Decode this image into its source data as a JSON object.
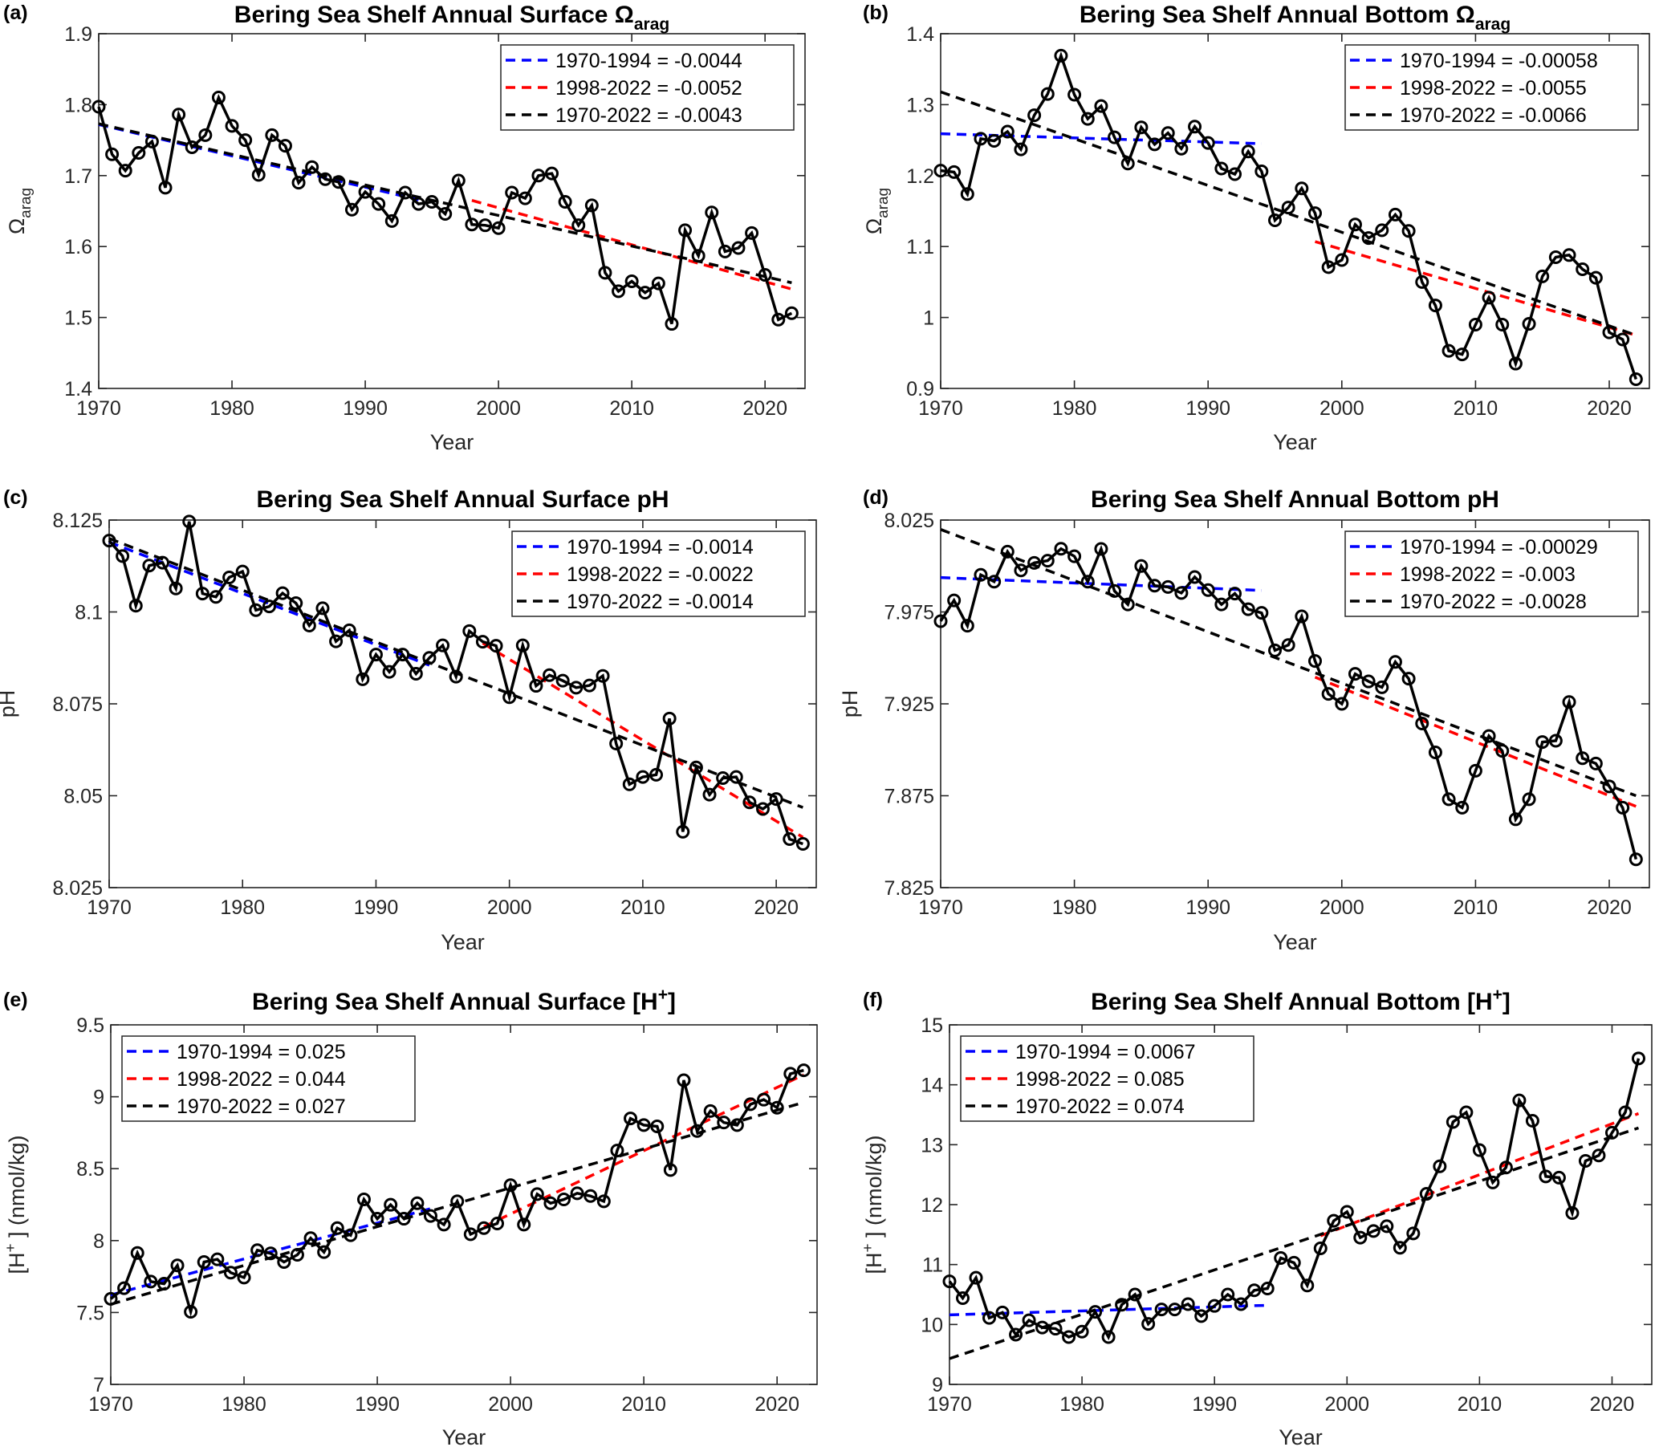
{
  "colors": {
    "series": "#000000",
    "trend_early": "#0000ff",
    "trend_late": "#ff0000",
    "trend_full": "#000000",
    "axis": "#262626"
  },
  "chart_data": [
    {
      "type": "line",
      "panel_label": "(a)",
      "title": [
        {
          "t": "Bering Sea Shelf Annual Surface Ω"
        },
        {
          "t": "arag",
          "s": "sub"
        }
      ],
      "xlabel": "Year",
      "ylabel": [
        {
          "t": "Ω"
        },
        {
          "t": "arag",
          "s": "sub"
        }
      ],
      "xlim": [
        1970,
        2023
      ],
      "ylim": [
        1.4,
        1.9
      ],
      "xticks": [
        1970,
        1980,
        1990,
        2000,
        2010,
        2020
      ],
      "yticks": [
        1.4,
        1.5,
        1.6,
        1.7,
        1.8,
        1.9
      ],
      "yticklabels": [
        "1.4",
        "1.5",
        "1.6",
        "1.7",
        "1.8",
        "1.9"
      ],
      "legend_position": "top-right",
      "x_start": 1970,
      "values": [
        1.797,
        1.73,
        1.707,
        1.732,
        1.748,
        1.683,
        1.786,
        1.74,
        1.757,
        1.81,
        1.77,
        1.75,
        1.701,
        1.757,
        1.742,
        1.69,
        1.712,
        1.695,
        1.691,
        1.652,
        1.677,
        1.66,
        1.636,
        1.676,
        1.66,
        1.663,
        1.646,
        1.693,
        1.631,
        1.63,
        1.626,
        1.676,
        1.668,
        1.7,
        1.703,
        1.663,
        1.63,
        1.658,
        1.563,
        1.537,
        1.551,
        1.535,
        1.548,
        1.491,
        1.623,
        1.587,
        1.648,
        1.593,
        1.598,
        1.619,
        1.56,
        1.497,
        1.506
      ],
      "trends": [
        {
          "label": "1970-1994 = -0.0044",
          "key": "trend_early",
          "x": [
            1970,
            1994
          ],
          "y": [
            1.772,
            1.666
          ]
        },
        {
          "label": "1998-2022 = -0.0052",
          "key": "trend_late",
          "x": [
            1998,
            2022
          ],
          "y": [
            1.665,
            1.54
          ]
        },
        {
          "label": "1970-2022 = -0.0043",
          "key": "trend_full",
          "x": [
            1970,
            2022
          ],
          "y": [
            1.773,
            1.549
          ]
        }
      ]
    },
    {
      "type": "line",
      "panel_label": "(b)",
      "title": [
        {
          "t": "Bering Sea Shelf Annual Bottom Ω"
        },
        {
          "t": "arag",
          "s": "sub"
        }
      ],
      "xlabel": "Year",
      "ylabel": [
        {
          "t": "Ω"
        },
        {
          "t": "arag",
          "s": "sub"
        }
      ],
      "xlim": [
        1970,
        2023
      ],
      "ylim": [
        0.9,
        1.4
      ],
      "xticks": [
        1970,
        1980,
        1990,
        2000,
        2010,
        2020
      ],
      "yticks": [
        0.9,
        1.0,
        1.1,
        1.2,
        1.3,
        1.4
      ],
      "yticklabels": [
        "0.9",
        "1",
        "1.1",
        "1.2",
        "1.3",
        "1.4"
      ],
      "legend_position": "top-right",
      "x_start": 1970,
      "values": [
        1.207,
        1.205,
        1.174,
        1.252,
        1.249,
        1.262,
        1.237,
        1.285,
        1.315,
        1.369,
        1.314,
        1.28,
        1.298,
        1.254,
        1.217,
        1.268,
        1.244,
        1.26,
        1.238,
        1.269,
        1.246,
        1.21,
        1.202,
        1.234,
        1.206,
        1.137,
        1.155,
        1.182,
        1.147,
        1.071,
        1.081,
        1.131,
        1.112,
        1.123,
        1.145,
        1.122,
        1.05,
        1.017,
        0.953,
        0.948,
        0.99,
        1.028,
        0.99,
        0.935,
        0.991,
        1.058,
        1.085,
        1.088,
        1.068,
        1.056,
        0.979,
        0.969,
        0.913
      ],
      "trends": [
        {
          "label": "1970-1994 = -0.00058",
          "key": "trend_early",
          "x": [
            1970,
            1994
          ],
          "y": [
            1.259,
            1.245
          ]
        },
        {
          "label": "1998-2022 = -0.0055",
          "key": "trend_late",
          "x": [
            1998,
            2022
          ],
          "y": [
            1.107,
            0.975
          ]
        },
        {
          "label": "1970-2022 = -0.0066",
          "key": "trend_full",
          "x": [
            1970,
            2022
          ],
          "y": [
            1.318,
            0.975
          ]
        }
      ]
    },
    {
      "type": "line",
      "panel_label": "(c)",
      "title": [
        {
          "t": "Bering Sea Shelf Annual Surface pH"
        }
      ],
      "xlabel": "Year",
      "ylabel": [
        {
          "t": "pH"
        }
      ],
      "xlim": [
        1970,
        2023
      ],
      "ylim": [
        8.025,
        8.125
      ],
      "xticks": [
        1970,
        1980,
        1990,
        2000,
        2010,
        2020
      ],
      "yticks": [
        8.025,
        8.05,
        8.075,
        8.1,
        8.125
      ],
      "yticklabels": [
        "8.025",
        "8.05",
        "8.075",
        "8.1",
        "8.125"
      ],
      "legend_position": "top-right",
      "x_start": 1970,
      "values": [
        8.1194,
        8.1152,
        8.1017,
        8.1126,
        8.1134,
        8.1064,
        8.1246,
        8.105,
        8.1041,
        8.1094,
        8.111,
        8.1005,
        8.1015,
        8.1051,
        8.1024,
        8.0963,
        8.101,
        8.092,
        8.095,
        8.0817,
        8.0884,
        8.0837,
        8.0884,
        8.0832,
        8.0875,
        8.0909,
        8.0824,
        8.0948,
        8.0919,
        8.0908,
        8.0768,
        8.0909,
        8.0799,
        8.0828,
        8.0813,
        8.0794,
        8.08,
        8.0826,
        8.0642,
        8.0531,
        8.0551,
        8.0557,
        8.071,
        8.0402,
        8.0577,
        8.0503,
        8.0548,
        8.0551,
        8.0482,
        8.0464,
        8.0491,
        8.0382,
        8.0369
      ],
      "trends": [
        {
          "label": "1970-1994 = -0.0014",
          "key": "trend_early",
          "x": [
            1970,
            1994
          ],
          "y": [
            8.119,
            8.0855
          ]
        },
        {
          "label": "1998-2022 = -0.0022",
          "key": "trend_late",
          "x": [
            1998,
            2022
          ],
          "y": [
            8.0915,
            8.0387
          ]
        },
        {
          "label": "1970-2022 = -0.0014",
          "key": "trend_full",
          "x": [
            1970,
            2022
          ],
          "y": [
            8.12,
            8.0468
          ]
        }
      ]
    },
    {
      "type": "line",
      "panel_label": "(d)",
      "title": [
        {
          "t": "Bering Sea Shelf Annual Bottom pH"
        }
      ],
      "xlabel": "Year",
      "ylabel": [
        {
          "t": "pH"
        }
      ],
      "xlim": [
        1970,
        2023
      ],
      "ylim": [
        7.825,
        8.025
      ],
      "xticks": [
        1970,
        1980,
        1990,
        2000,
        2010,
        2020
      ],
      "yticks": [
        7.825,
        7.875,
        7.925,
        7.975,
        8.025
      ],
      "yticklabels": [
        "7.825",
        "7.875",
        "7.925",
        "7.975",
        "8.025"
      ],
      "legend_position": "top-right",
      "x_start": 1970,
      "values": [
        7.97,
        7.9813,
        7.9675,
        7.9952,
        7.9915,
        8.0078,
        7.9976,
        8.0017,
        8.0029,
        8.0094,
        8.0053,
        7.9915,
        8.0093,
        7.9864,
        7.9791,
        8.0,
        7.9893,
        7.9886,
        7.9853,
        7.994,
        7.9869,
        7.9791,
        7.985,
        7.9765,
        7.9745,
        7.9541,
        7.957,
        7.9726,
        7.9483,
        7.9304,
        7.925,
        7.9413,
        7.9372,
        7.934,
        7.9478,
        7.9387,
        7.9143,
        7.8986,
        7.8731,
        7.8685,
        7.8886,
        7.9075,
        7.8994,
        7.8622,
        7.8731,
        7.9042,
        7.9049,
        7.926,
        7.8954,
        7.8925,
        7.8801,
        7.8685,
        7.8404
      ],
      "trends": [
        {
          "label": "1970-1994 = -0.00029",
          "key": "trend_early",
          "x": [
            1970,
            1994
          ],
          "y": [
            7.9937,
            7.9867
          ]
        },
        {
          "label": "1998-2022 = -0.003",
          "key": "trend_late",
          "x": [
            1998,
            2022
          ],
          "y": [
            7.9395,
            7.8692
          ]
        },
        {
          "label": "1970-2022 = -0.0028",
          "key": "trend_full",
          "x": [
            1970,
            2022
          ],
          "y": [
            8.0199,
            7.875
          ]
        }
      ]
    },
    {
      "type": "line",
      "panel_label": "(e)",
      "title": [
        {
          "t": "Bering Sea Shelf Annual Surface [H"
        },
        {
          "t": "+",
          "s": "sup"
        },
        {
          "t": "]"
        }
      ],
      "xlabel": "Year",
      "ylabel": [
        {
          "t": "[H"
        },
        {
          "t": "+",
          "s": "sup"
        },
        {
          "t": " ] (nmol/kg)"
        }
      ],
      "xlim": [
        1970,
        2023
      ],
      "ylim": [
        7,
        9.5
      ],
      "xticks": [
        1970,
        1980,
        1990,
        2000,
        2010,
        2020
      ],
      "yticks": [
        7,
        7.5,
        8,
        8.5,
        9,
        9.5
      ],
      "yticklabels": [
        "7",
        "7.5",
        "8",
        "8.5",
        "9",
        "9.5"
      ],
      "legend_position": "top-left",
      "x_start": 1970,
      "values": [
        7.595,
        7.669,
        7.914,
        7.715,
        7.7,
        7.827,
        7.505,
        7.851,
        7.87,
        7.777,
        7.743,
        7.933,
        7.911,
        7.851,
        7.901,
        8.017,
        7.92,
        8.087,
        8.037,
        8.286,
        8.152,
        8.249,
        8.152,
        8.26,
        8.171,
        8.111,
        8.273,
        8.044,
        8.087,
        8.119,
        8.385,
        8.111,
        8.323,
        8.26,
        8.286,
        8.329,
        8.31,
        8.273,
        8.626,
        8.849,
        8.803,
        8.794,
        8.491,
        9.115,
        8.762,
        8.901,
        8.821,
        8.803,
        8.948,
        8.98,
        8.924,
        9.16,
        9.184
      ],
      "trends": [
        {
          "label": "1970-1994 = 0.025",
          "key": "trend_early",
          "x": [
            1970,
            1994
          ],
          "y": [
            7.622,
            8.222
          ]
        },
        {
          "label": "1998-2022 = 0.044",
          "key": "trend_late",
          "x": [
            1998,
            2022
          ],
          "y": [
            8.097,
            9.153
          ]
        },
        {
          "label": "1970-2022 = 0.027",
          "key": "trend_full",
          "x": [
            1970,
            2022
          ],
          "y": [
            7.557,
            8.961
          ]
        }
      ]
    },
    {
      "type": "line",
      "panel_label": "(f)",
      "title": [
        {
          "t": "Bering Sea Shelf Annual Bottom [H"
        },
        {
          "t": "+",
          "s": "sup"
        },
        {
          "t": "]"
        }
      ],
      "xlabel": "Year",
      "ylabel": [
        {
          "t": "[H"
        },
        {
          "t": "+",
          "s": "sup"
        },
        {
          "t": " ] (nmol/kg)"
        }
      ],
      "xlim": [
        1970,
        2023
      ],
      "ylim": [
        9,
        15
      ],
      "xticks": [
        1970,
        1980,
        1990,
        2000,
        2010,
        2020
      ],
      "yticks": [
        9,
        10,
        11,
        12,
        13,
        14,
        15
      ],
      "yticklabels": [
        "9",
        "10",
        "11",
        "12",
        "13",
        "14",
        "15"
      ],
      "legend_position": "top-left",
      "x_start": 1970,
      "values": [
        10.72,
        10.44,
        10.78,
        10.11,
        10.2,
        9.83,
        10.07,
        9.95,
        9.93,
        9.79,
        9.88,
        10.21,
        9.79,
        10.33,
        10.5,
        10.01,
        10.25,
        10.25,
        10.34,
        10.14,
        10.31,
        10.5,
        10.34,
        10.57,
        10.6,
        11.11,
        11.03,
        10.65,
        11.27,
        11.73,
        11.88,
        11.45,
        11.56,
        11.64,
        11.28,
        11.52,
        12.18,
        12.64,
        13.38,
        13.54,
        12.91,
        12.37,
        12.62,
        13.74,
        13.4,
        12.47,
        12.45,
        11.86,
        12.73,
        12.82,
        13.2,
        13.54,
        14.44
      ],
      "trends": [
        {
          "label": "1970-1994 = 0.0067",
          "key": "trend_early",
          "x": [
            1970,
            1994
          ],
          "y": [
            10.16,
            10.32
          ]
        },
        {
          "label": "1998-2022 = 0.085",
          "key": "trend_late",
          "x": [
            1998,
            2022
          ],
          "y": [
            11.48,
            13.52
          ]
        },
        {
          "label": "1970-2022 = 0.074",
          "key": "trend_full",
          "x": [
            1970,
            2022
          ],
          "y": [
            9.43,
            13.28
          ]
        }
      ]
    }
  ]
}
